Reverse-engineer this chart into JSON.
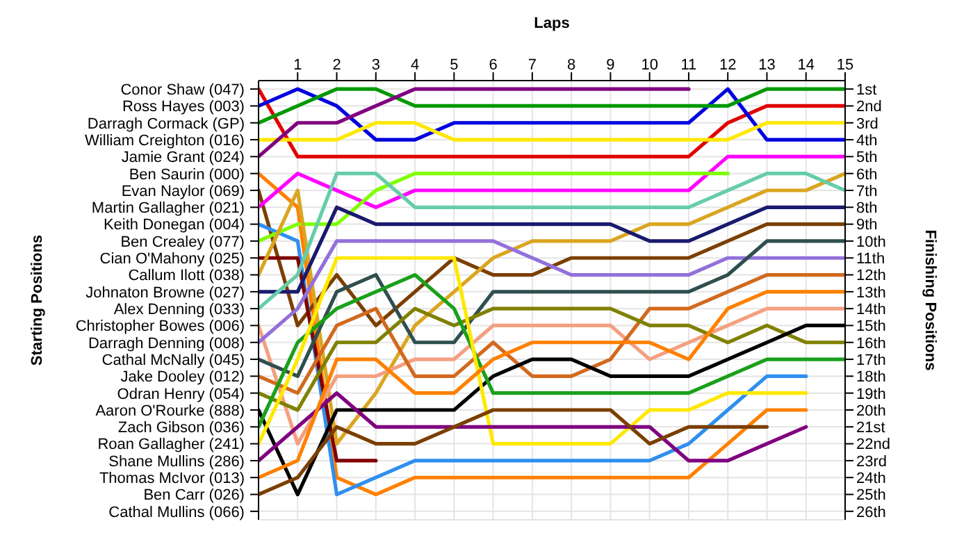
{
  "chart_data": {
    "type": "line",
    "xlabel": "Laps",
    "ylabel": "Finishing Positions",
    "annotations": [
      "Starting Positions",
      "Conor Shaw (047)",
      "Ross Hayes (003)",
      "Darragh Cormack (GP)",
      "William Creighton (016)",
      "Jamie Grant (024)",
      "Ben Saurin (000)",
      "Evan Naylor (069)",
      "Martin Gallagher (021)",
      "Keith Donegan (004)",
      "Ben Crealey (077)",
      "Cian O'Mahony (025)",
      "Callum Ilott (038)",
      "Johnaton Browne (027)",
      "Alex Denning (033)",
      "Christopher Bowes (006)",
      "Darragh Denning (008)",
      "Cathal McNally (045)",
      "Jake Dooley (012)",
      "Odran Henry (054)",
      "Aaron O'Rourke (888)",
      "Zach Gibson (036)",
      "Roan Gallagher (241)",
      "Shane Mullins (286)",
      "Thomas McIvor (013)",
      "Ben Carr (026)",
      "Cathal Mullins (066)"
    ],
    "x": [
      0,
      1,
      2,
      3,
      4,
      5,
      6,
      7,
      8,
      9,
      10,
      11,
      12,
      13,
      14,
      15
    ],
    "xlim": [
      0,
      15
    ],
    "xticks": [
      1,
      2,
      3,
      4,
      5,
      6,
      7,
      8,
      9,
      10,
      11,
      12,
      13,
      14,
      15
    ],
    "ylim": [
      26.5,
      0.5
    ],
    "yticks": [
      {
        "value": 1,
        "label": "1st"
      },
      {
        "value": 2,
        "label": "2nd"
      },
      {
        "value": 3,
        "label": "3rd"
      },
      {
        "value": 4,
        "label": "4th"
      },
      {
        "value": 5,
        "label": "5th"
      },
      {
        "value": 6,
        "label": "6th"
      },
      {
        "value": 7,
        "label": "7th"
      },
      {
        "value": 8,
        "label": "8th"
      },
      {
        "value": 9,
        "label": "9th"
      },
      {
        "value": 10,
        "label": "10th"
      },
      {
        "value": 11,
        "label": "11th"
      },
      {
        "value": 12,
        "label": "12th"
      },
      {
        "value": 13,
        "label": "13th"
      },
      {
        "value": 14,
        "label": "14th"
      },
      {
        "value": 15,
        "label": "15th"
      },
      {
        "value": 16,
        "label": "16th"
      },
      {
        "value": 17,
        "label": "17th"
      },
      {
        "value": 18,
        "label": "18th"
      },
      {
        "value": 19,
        "label": "19th"
      },
      {
        "value": 20,
        "label": "20th"
      },
      {
        "value": 21,
        "label": "21st"
      },
      {
        "value": 22,
        "label": "22nd"
      },
      {
        "value": 23,
        "label": "23rd"
      },
      {
        "value": 24,
        "label": "24th"
      },
      {
        "value": 25,
        "label": "25th"
      },
      {
        "value": 26,
        "label": "26th"
      }
    ],
    "grid": true,
    "series": [
      {
        "color": "#e00000",
        "values": [
          1,
          5,
          5,
          5,
          5,
          5,
          5,
          5,
          5,
          5,
          5,
          5,
          3,
          2,
          2,
          2
        ]
      },
      {
        "color": "#0000e0",
        "values": [
          2,
          1,
          2,
          4,
          4,
          3,
          3,
          3,
          3,
          3,
          3,
          3,
          1,
          4,
          4,
          4
        ]
      },
      {
        "color": "#009900",
        "values": [
          3,
          2,
          1,
          1,
          2,
          2,
          2,
          2,
          2,
          2,
          2,
          2,
          2,
          1,
          1,
          1
        ]
      },
      {
        "color": "#ffe800",
        "values": [
          4,
          4,
          4,
          3,
          3,
          4,
          4,
          4,
          4,
          4,
          4,
          4,
          4,
          3,
          3,
          3
        ]
      },
      {
        "color": "#800080",
        "values": [
          5,
          3,
          3,
          2,
          1,
          1,
          1,
          1,
          1,
          1,
          1,
          1,
          null,
          null,
          null,
          null
        ]
      },
      {
        "color": "#ff8000",
        "values": [
          6,
          8,
          24,
          25,
          24,
          24,
          24,
          24,
          24,
          24,
          24,
          24,
          22,
          20,
          20,
          null
        ]
      },
      {
        "color": "#7b3f00",
        "values": [
          7,
          15,
          12,
          15,
          13,
          11,
          12,
          12,
          11,
          11,
          11,
          11,
          10,
          9,
          9,
          9
        ]
      },
      {
        "color": "#ff00ff",
        "values": [
          8,
          6,
          7,
          8,
          7,
          7,
          7,
          7,
          7,
          7,
          7,
          7,
          5,
          5,
          5,
          5
        ]
      },
      {
        "color": "#2f8fef",
        "values": [
          9,
          10,
          25,
          24,
          23,
          23,
          23,
          23,
          23,
          23,
          23,
          22,
          20,
          18,
          18,
          null
        ]
      },
      {
        "color": "#80ff00",
        "values": [
          10,
          9,
          9,
          7,
          6,
          6,
          6,
          6,
          6,
          6,
          6,
          6,
          6,
          null,
          null,
          null
        ]
      },
      {
        "color": "#800000",
        "values": [
          11,
          11,
          23,
          23,
          null,
          null,
          null,
          null,
          null,
          null,
          null,
          null,
          null,
          null,
          null,
          null
        ]
      },
      {
        "color": "#daa520",
        "values": [
          12,
          7,
          22,
          19,
          15,
          13,
          11,
          10,
          10,
          10,
          9,
          9,
          8,
          7,
          7,
          6
        ]
      },
      {
        "color": "#1a1a6e",
        "values": [
          13,
          13,
          8,
          9,
          9,
          9,
          9,
          9,
          9,
          9,
          10,
          10,
          9,
          8,
          8,
          8
        ]
      },
      {
        "color": "#66ccaa",
        "values": [
          14,
          12,
          6,
          6,
          8,
          8,
          8,
          8,
          8,
          8,
          8,
          8,
          7,
          6,
          6,
          7
        ]
      },
      {
        "color": "#f4a080",
        "values": [
          15,
          22,
          18,
          18,
          17,
          17,
          15,
          15,
          15,
          15,
          17,
          16,
          15,
          14,
          14,
          14
        ]
      },
      {
        "color": "#9370db",
        "values": [
          16,
          14,
          10,
          10,
          10,
          10,
          10,
          11,
          12,
          12,
          12,
          12,
          11,
          11,
          11,
          11
        ]
      },
      {
        "color": "#2f4f4f",
        "values": [
          17,
          18,
          13,
          12,
          16,
          16,
          13,
          13,
          13,
          13,
          13,
          13,
          12,
          10,
          10,
          10
        ]
      },
      {
        "color": "#d2691e",
        "values": [
          18,
          19,
          15,
          14,
          18,
          18,
          16,
          18,
          18,
          17,
          14,
          14,
          13,
          12,
          12,
          12
        ]
      },
      {
        "color": "#808000",
        "values": [
          19,
          20,
          16,
          16,
          14,
          15,
          14,
          14,
          14,
          14,
          15,
          15,
          16,
          15,
          16,
          16
        ]
      },
      {
        "color": "#000000",
        "values": [
          20,
          25,
          20,
          20,
          20,
          20,
          18,
          17,
          17,
          18,
          18,
          18,
          17,
          16,
          15,
          15
        ]
      },
      {
        "color": "#1aa01a",
        "values": [
          21,
          16,
          14,
          13,
          12,
          14,
          19,
          19,
          19,
          19,
          19,
          19,
          18,
          17,
          17,
          17
        ]
      },
      {
        "color": "#ffe800",
        "values": [
          22,
          17,
          11,
          11,
          11,
          11,
          22,
          22,
          22,
          22,
          20,
          20,
          19,
          19,
          19,
          null
        ]
      },
      {
        "color": "#800080",
        "values": [
          23,
          21,
          19,
          21,
          21,
          21,
          21,
          21,
          21,
          21,
          21,
          23,
          23,
          22,
          21,
          null
        ]
      },
      {
        "color": "#ff8000",
        "values": [
          24,
          23,
          17,
          17,
          19,
          19,
          17,
          16,
          16,
          16,
          16,
          17,
          14,
          13,
          13,
          13
        ]
      },
      {
        "color": "#7b3f00",
        "values": [
          25,
          24,
          21,
          22,
          22,
          21,
          20,
          20,
          20,
          20,
          22,
          21,
          21,
          21,
          null,
          null
        ]
      }
    ]
  }
}
